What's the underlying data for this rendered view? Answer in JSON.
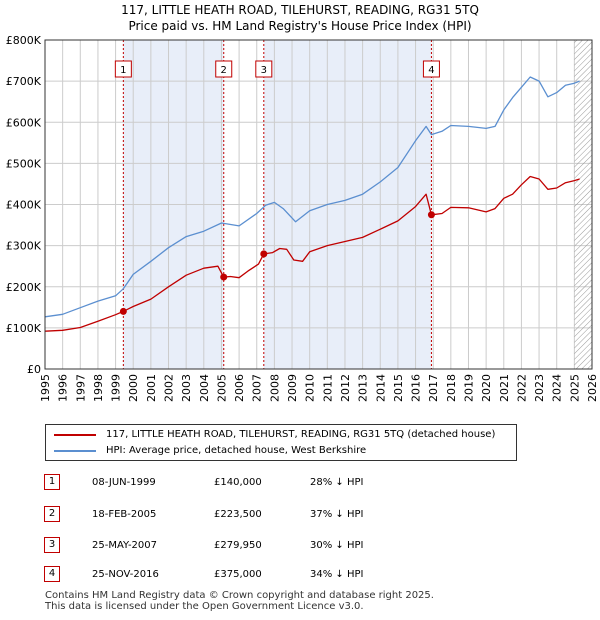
{
  "colors": {
    "price_paid": "#c00000",
    "hpi": "#5b8fd0",
    "shade": "#e8eef9",
    "grid": "#cccccc"
  },
  "title_line1": "117, LITTLE HEATH ROAD, TILEHURST, READING, RG31 5TQ",
  "title_line2": "Price paid vs. HM Land Registry's House Price Index (HPI)",
  "legend": {
    "price_label": "117, LITTLE HEATH ROAD, TILEHURST, READING, RG31 5TQ (detached house)",
    "hpi_label": "HPI: Average price, detached house, West Berkshire"
  },
  "sales": [
    {
      "num": "1",
      "date": "08-JUN-1999",
      "price": "£140,000",
      "hpi": "28% ↓ HPI"
    },
    {
      "num": "2",
      "date": "18-FEB-2005",
      "price": "£223,500",
      "hpi": "37% ↓ HPI"
    },
    {
      "num": "3",
      "date": "25-MAY-2007",
      "price": "£279,950",
      "hpi": "30% ↓ HPI"
    },
    {
      "num": "4",
      "date": "25-NOV-2016",
      "price": "£375,000",
      "hpi": "34% ↓ HPI"
    }
  ],
  "footer": {
    "line1": "Contains HM Land Registry data © Crown copyright and database right 2025.",
    "line2": "This data is licensed under the Open Government Licence v3.0."
  },
  "chart_data": {
    "type": "line",
    "title": "117, LITTLE HEATH ROAD, TILEHURST, READING, RG31 5TQ",
    "subtitle": "Price paid vs. HM Land Registry's House Price Index (HPI)",
    "xlim": [
      1995,
      2026
    ],
    "ylim": [
      0,
      800000
    ],
    "x_ticks": [
      1995,
      1996,
      1997,
      1998,
      1999,
      2000,
      2001,
      2002,
      2003,
      2004,
      2005,
      2006,
      2007,
      2008,
      2009,
      2010,
      2011,
      2012,
      2013,
      2014,
      2015,
      2016,
      2017,
      2018,
      2019,
      2020,
      2021,
      2022,
      2023,
      2024,
      2025,
      2026
    ],
    "y_ticks": [
      {
        "value": 0,
        "label": "£0"
      },
      {
        "value": 100000,
        "label": "£100K"
      },
      {
        "value": 200000,
        "label": "£200K"
      },
      {
        "value": 300000,
        "label": "£300K"
      },
      {
        "value": 400000,
        "label": "£400K"
      },
      {
        "value": 500000,
        "label": "£500K"
      },
      {
        "value": 600000,
        "label": "£600K"
      },
      {
        "value": 700000,
        "label": "£700K"
      },
      {
        "value": 800000,
        "label": "£800K"
      }
    ],
    "grid": true,
    "shaded_periods": [
      [
        1999.44,
        2005.13
      ],
      [
        2007.4,
        2016.9
      ]
    ],
    "hatched_from": 2025.0,
    "sale_markers": [
      {
        "label": "1",
        "x": 1999.44,
        "y": 140000
      },
      {
        "label": "2",
        "x": 2005.13,
        "y": 223500
      },
      {
        "label": "3",
        "x": 2007.4,
        "y": 279950
      },
      {
        "label": "4",
        "x": 2016.9,
        "y": 375000
      }
    ],
    "series": [
      {
        "name": "117, LITTLE HEATH ROAD, TILEHURST, READING, RG31 5TQ (detached house)",
        "x": [
          1995,
          1996,
          1997,
          1998,
          1999,
          1999.44,
          2000,
          2001,
          2002,
          2003,
          2004,
          2004.8,
          2005.13,
          2005.5,
          2006,
          2006.5,
          2007.1,
          2007.4,
          2007.9,
          2008.3,
          2008.7,
          2009.1,
          2009.6,
          2010,
          2011,
          2012,
          2013,
          2014,
          2015,
          2016,
          2016.6,
          2016.9,
          2017.5,
          2018,
          2019,
          2020,
          2020.5,
          2021,
          2021.5,
          2022,
          2022.5,
          2023,
          2023.5,
          2024,
          2024.5,
          2025,
          2025.3
        ],
        "y": [
          92000,
          94000,
          101000,
          116000,
          132000,
          140000,
          152000,
          170000,
          200000,
          228000,
          245000,
          250000,
          223500,
          225000,
          222000,
          238000,
          255000,
          279950,
          283000,
          293000,
          291000,
          265000,
          262000,
          285000,
          300000,
          310000,
          320000,
          340000,
          360000,
          395000,
          425000,
          375000,
          378000,
          393000,
          392000,
          382000,
          390000,
          415000,
          425000,
          448000,
          468000,
          462000,
          437000,
          440000,
          453000,
          458000,
          462000
        ]
      },
      {
        "name": "HPI: Average price, detached house, West Berkshire",
        "x": [
          1995,
          1996,
          1997,
          1998,
          1999,
          1999.44,
          2000,
          2001,
          2002,
          2003,
          2004,
          2005,
          2006,
          2007,
          2007.5,
          2008,
          2008.5,
          2009.2,
          2010,
          2011,
          2012,
          2013,
          2014,
          2015,
          2016,
          2016.6,
          2016.9,
          2017.5,
          2018,
          2019,
          2020,
          2020.5,
          2021,
          2021.5,
          2022,
          2022.5,
          2023,
          2023.5,
          2024,
          2024.5,
          2025,
          2025.3
        ],
        "y": [
          127000,
          133000,
          149000,
          165000,
          178000,
          195000,
          230000,
          262000,
          295000,
          322000,
          335000,
          355000,
          348000,
          378000,
          398000,
          405000,
          390000,
          358000,
          385000,
          400000,
          410000,
          425000,
          455000,
          490000,
          555000,
          590000,
          570000,
          578000,
          592000,
          590000,
          585000,
          590000,
          630000,
          660000,
          685000,
          710000,
          700000,
          662000,
          672000,
          690000,
          695000,
          700000
        ]
      }
    ]
  }
}
